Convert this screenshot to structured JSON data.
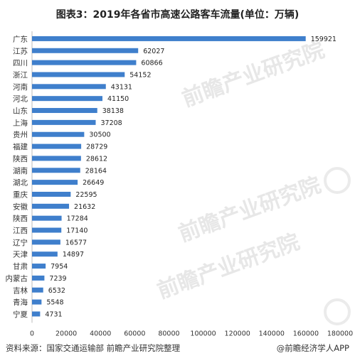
{
  "title": "图表3：2019年各省市高速公路客车流量(单位：万辆)",
  "footer": {
    "source": "资料来源：国家交通运输部 前瞻产业研究院整理",
    "brand": "@前瞻经济学人APP"
  },
  "watermark": "前瞻产业研究院",
  "colors": {
    "bar": "#3f7fcc",
    "axis": "#bbbbbb"
  },
  "chart_data": {
    "type": "bar",
    "orientation": "horizontal",
    "title": "图表3：2019年各省市高速公路客车流量(单位：万辆)",
    "xlabel": "",
    "ylabel": "",
    "xlim": [
      0,
      180000
    ],
    "x_ticks": [
      0,
      20000,
      40000,
      60000,
      80000,
      100000,
      120000,
      140000,
      160000,
      180000
    ],
    "x_tick_labels": [
      "0",
      "20000",
      "40000",
      "60000",
      "80000",
      "100000",
      "120000",
      "140000",
      "160000",
      "180000"
    ],
    "grid": false,
    "legend": "none",
    "categories": [
      "广东",
      "江苏",
      "四川",
      "浙江",
      "河南",
      "河北",
      "山东",
      "上海",
      "贵州",
      "福建",
      "陕西",
      "湖南",
      "湖北",
      "重庆",
      "安徽",
      "陕西",
      "江西",
      "辽宁",
      "天津",
      "甘肃",
      "内蒙古",
      "吉林",
      "青海",
      "宁夏"
    ],
    "values": [
      159921,
      62027,
      60866,
      54152,
      43131,
      41150,
      38138,
      37208,
      30500,
      28729,
      28612,
      28164,
      26649,
      22595,
      21632,
      17284,
      17140,
      16577,
      14897,
      7954,
      7239,
      6532,
      5548,
      4731
    ],
    "value_labels": [
      "159921",
      "62027",
      "60866",
      "54152",
      "43131",
      "41150",
      "38138",
      "37208",
      "30500",
      "28729",
      "28612",
      "28164",
      "26649",
      "22595",
      "21632",
      "17284",
      "17140",
      "16577",
      "14897",
      "7954",
      "7239",
      "6532",
      "5548",
      "4731"
    ]
  }
}
